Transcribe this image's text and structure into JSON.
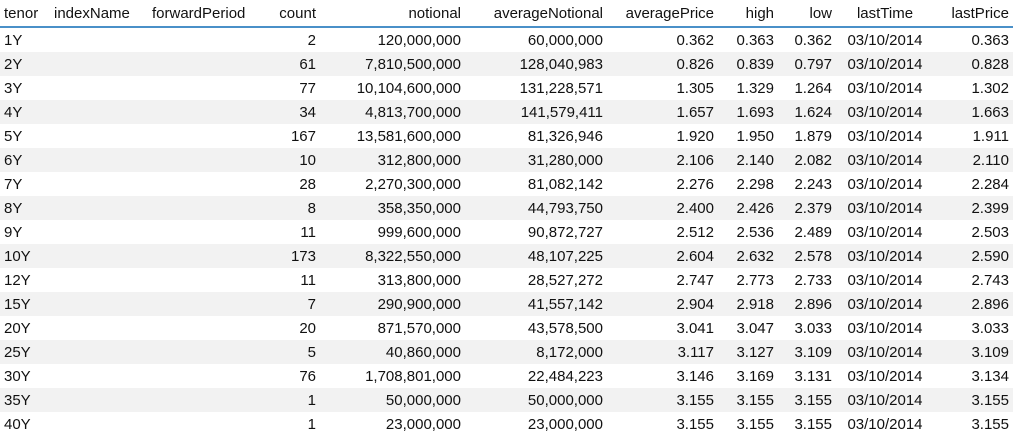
{
  "columns": [
    {
      "key": "tenor",
      "label": "tenor"
    },
    {
      "key": "indexName",
      "label": "indexName"
    },
    {
      "key": "forwardPeriod",
      "label": "forwardPeriod"
    },
    {
      "key": "count",
      "label": "count"
    },
    {
      "key": "notional",
      "label": "notional"
    },
    {
      "key": "averageNotional",
      "label": "averageNotional"
    },
    {
      "key": "averagePrice",
      "label": "averagePrice"
    },
    {
      "key": "high",
      "label": "high"
    },
    {
      "key": "low",
      "label": "low"
    },
    {
      "key": "lastTime",
      "label": "lastTime"
    },
    {
      "key": "lastPrice",
      "label": "lastPrice"
    }
  ],
  "rows": [
    {
      "tenor": "1Y",
      "indexName": "",
      "forwardPeriod": "",
      "count": "2",
      "notional": "120,000,000",
      "averageNotional": "60,000,000",
      "averagePrice": "0.362",
      "high": "0.363",
      "low": "0.362",
      "lastTime": "03/10/2014",
      "lastPrice": "0.363"
    },
    {
      "tenor": "2Y",
      "indexName": "",
      "forwardPeriod": "",
      "count": "61",
      "notional": "7,810,500,000",
      "averageNotional": "128,040,983",
      "averagePrice": "0.826",
      "high": "0.839",
      "low": "0.797",
      "lastTime": "03/10/2014",
      "lastPrice": "0.828"
    },
    {
      "tenor": "3Y",
      "indexName": "",
      "forwardPeriod": "",
      "count": "77",
      "notional": "10,104,600,000",
      "averageNotional": "131,228,571",
      "averagePrice": "1.305",
      "high": "1.329",
      "low": "1.264",
      "lastTime": "03/10/2014",
      "lastPrice": "1.302"
    },
    {
      "tenor": "4Y",
      "indexName": "",
      "forwardPeriod": "",
      "count": "34",
      "notional": "4,813,700,000",
      "averageNotional": "141,579,411",
      "averagePrice": "1.657",
      "high": "1.693",
      "low": "1.624",
      "lastTime": "03/10/2014",
      "lastPrice": "1.663"
    },
    {
      "tenor": "5Y",
      "indexName": "",
      "forwardPeriod": "",
      "count": "167",
      "notional": "13,581,600,000",
      "averageNotional": "81,326,946",
      "averagePrice": "1.920",
      "high": "1.950",
      "low": "1.879",
      "lastTime": "03/10/2014",
      "lastPrice": "1.911"
    },
    {
      "tenor": "6Y",
      "indexName": "",
      "forwardPeriod": "",
      "count": "10",
      "notional": "312,800,000",
      "averageNotional": "31,280,000",
      "averagePrice": "2.106",
      "high": "2.140",
      "low": "2.082",
      "lastTime": "03/10/2014",
      "lastPrice": "2.110"
    },
    {
      "tenor": "7Y",
      "indexName": "",
      "forwardPeriod": "",
      "count": "28",
      "notional": "2,270,300,000",
      "averageNotional": "81,082,142",
      "averagePrice": "2.276",
      "high": "2.298",
      "low": "2.243",
      "lastTime": "03/10/2014",
      "lastPrice": "2.284"
    },
    {
      "tenor": "8Y",
      "indexName": "",
      "forwardPeriod": "",
      "count": "8",
      "notional": "358,350,000",
      "averageNotional": "44,793,750",
      "averagePrice": "2.400",
      "high": "2.426",
      "low": "2.379",
      "lastTime": "03/10/2014",
      "lastPrice": "2.399"
    },
    {
      "tenor": "9Y",
      "indexName": "",
      "forwardPeriod": "",
      "count": "11",
      "notional": "999,600,000",
      "averageNotional": "90,872,727",
      "averagePrice": "2.512",
      "high": "2.536",
      "low": "2.489",
      "lastTime": "03/10/2014",
      "lastPrice": "2.503"
    },
    {
      "tenor": "10Y",
      "indexName": "",
      "forwardPeriod": "",
      "count": "173",
      "notional": "8,322,550,000",
      "averageNotional": "48,107,225",
      "averagePrice": "2.604",
      "high": "2.632",
      "low": "2.578",
      "lastTime": "03/10/2014",
      "lastPrice": "2.590"
    },
    {
      "tenor": "12Y",
      "indexName": "",
      "forwardPeriod": "",
      "count": "11",
      "notional": "313,800,000",
      "averageNotional": "28,527,272",
      "averagePrice": "2.747",
      "high": "2.773",
      "low": "2.733",
      "lastTime": "03/10/2014",
      "lastPrice": "2.743"
    },
    {
      "tenor": "15Y",
      "indexName": "",
      "forwardPeriod": "",
      "count": "7",
      "notional": "290,900,000",
      "averageNotional": "41,557,142",
      "averagePrice": "2.904",
      "high": "2.918",
      "low": "2.896",
      "lastTime": "03/10/2014",
      "lastPrice": "2.896"
    },
    {
      "tenor": "20Y",
      "indexName": "",
      "forwardPeriod": "",
      "count": "20",
      "notional": "871,570,000",
      "averageNotional": "43,578,500",
      "averagePrice": "3.041",
      "high": "3.047",
      "low": "3.033",
      "lastTime": "03/10/2014",
      "lastPrice": "3.033"
    },
    {
      "tenor": "25Y",
      "indexName": "",
      "forwardPeriod": "",
      "count": "5",
      "notional": "40,860,000",
      "averageNotional": "8,172,000",
      "averagePrice": "3.117",
      "high": "3.127",
      "low": "3.109",
      "lastTime": "03/10/2014",
      "lastPrice": "3.109"
    },
    {
      "tenor": "30Y",
      "indexName": "",
      "forwardPeriod": "",
      "count": "76",
      "notional": "1,708,801,000",
      "averageNotional": "22,484,223",
      "averagePrice": "3.146",
      "high": "3.169",
      "low": "3.131",
      "lastTime": "03/10/2014",
      "lastPrice": "3.134"
    },
    {
      "tenor": "35Y",
      "indexName": "",
      "forwardPeriod": "",
      "count": "1",
      "notional": "50,000,000",
      "averageNotional": "50,000,000",
      "averagePrice": "3.155",
      "high": "3.155",
      "low": "3.155",
      "lastTime": "03/10/2014",
      "lastPrice": "3.155"
    },
    {
      "tenor": "40Y",
      "indexName": "",
      "forwardPeriod": "",
      "count": "1",
      "notional": "23,000,000",
      "averageNotional": "23,000,000",
      "averagePrice": "3.155",
      "high": "3.155",
      "low": "3.155",
      "lastTime": "03/10/2014",
      "lastPrice": "3.155"
    }
  ]
}
